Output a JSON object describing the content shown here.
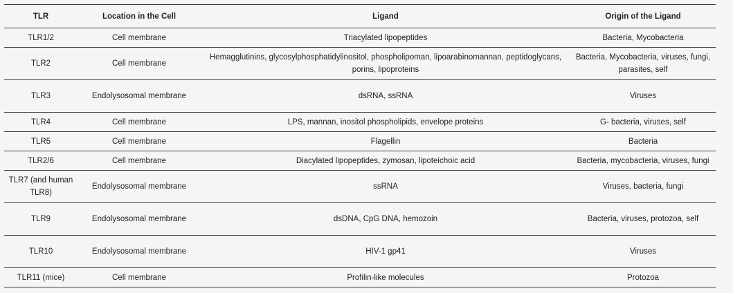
{
  "table": {
    "headers": [
      "TLR",
      "Location in the Cell",
      "Ligand",
      "Origin of the Ligand"
    ],
    "rows": [
      {
        "tlr": "TLR1/2",
        "location": "Cell membrane",
        "ligand": "Triacylated lipopeptides",
        "origin": "Bacteria, Mycobacteria"
      },
      {
        "tlr": "TLR2",
        "location": "Cell membrane",
        "ligand": "Hemagglutinins, glycosylphosphatidylinositol, phospholipoman, lipoarabinomannan, peptidoglycans, porins, lipoproteins",
        "origin": "Bacteria, Mycobacteria, viruses, fungi, parasites, self"
      },
      {
        "tlr": "TLR3",
        "location": "Endolysosomal membrane",
        "ligand": "dsRNA, ssRNA",
        "origin": "Viruses"
      },
      {
        "tlr": "TLR4",
        "location": "Cell membrane",
        "ligand": "LPS, mannan, inositol phospholipids, envelope proteins",
        "origin": "G- bacteria, viruses, self"
      },
      {
        "tlr": "TLR5",
        "location": "Cell membrane",
        "ligand": "Flagellin",
        "origin": "Bacteria"
      },
      {
        "tlr": "TLR2/6",
        "location": "Cell membrane",
        "ligand": "Diacylated lipopeptides, zymosan, lipoteichoic acid",
        "origin": "Bacteria, mycobacteria, viruses, fungi"
      },
      {
        "tlr": "TLR7 (and human TLR8)",
        "location": "Endolysosomal membrane",
        "ligand": "ssRNA",
        "origin": "Viruses, bacteria, fungi"
      },
      {
        "tlr": "TLR9",
        "location": "Endolysosomal membrane",
        "ligand": "dsDNA, CpG DNA, hemozoin",
        "origin": "Bacteria, viruses, protozoa, self"
      },
      {
        "tlr": "TLR10",
        "location": "Endolysosomal membrane",
        "ligand": "HIV-1 gp41",
        "origin": "Viruses"
      },
      {
        "tlr": "TLR11 (mice)",
        "location": "Cell membrane",
        "ligand": "Profilin-like molecules",
        "origin": "Protozoa"
      }
    ]
  }
}
